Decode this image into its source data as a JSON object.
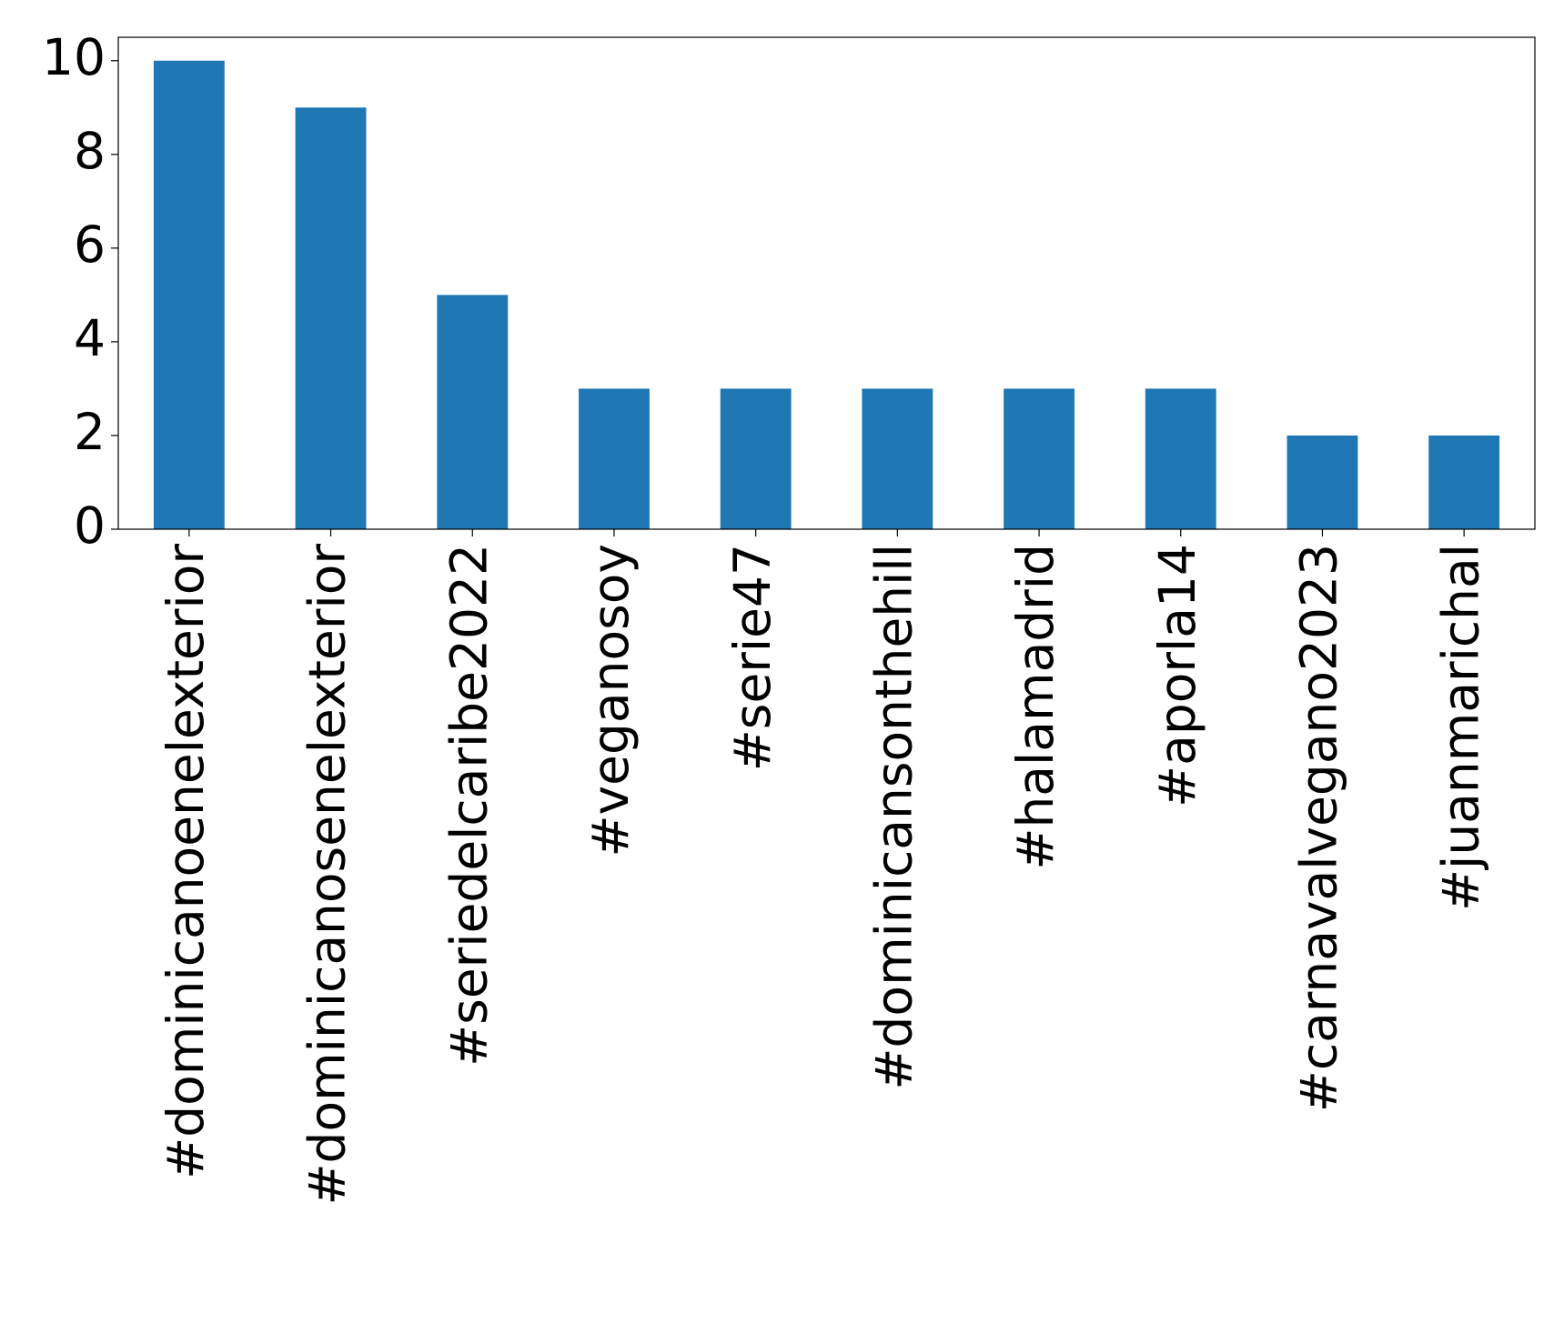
{
  "chart_data": {
    "type": "bar",
    "categories": [
      "#dominicanoenelexterior",
      "#dominicanosenelexterior",
      "#seriedelcaribe2022",
      "#veganosoy",
      "#serie47",
      "#dominicansonthehill",
      "#halamadrid",
      "#aporla14",
      "#carnavalvegano2023",
      "#juanmarichal"
    ],
    "values": [
      10,
      9,
      5,
      3,
      3,
      3,
      3,
      3,
      2,
      2
    ],
    "color": "#1f77b4",
    "ylim": [
      0,
      10.5
    ],
    "yticks": [
      0,
      2,
      4,
      6,
      8,
      10
    ],
    "grid": false
  }
}
